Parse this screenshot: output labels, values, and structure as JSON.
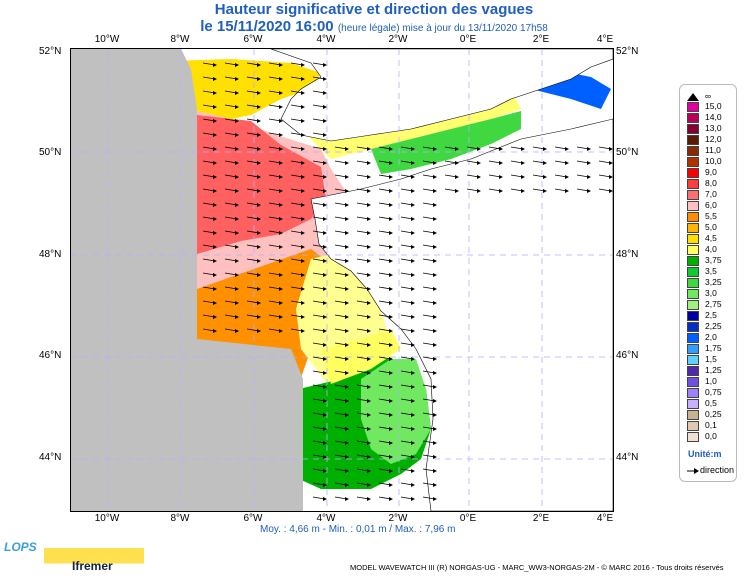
{
  "header": {
    "title": "Hauteur significative et direction des vagues",
    "date_label": "le 15/11/2020 16:00",
    "update_note": "(heure légale) mise à jour du 13/11/2020 17h58"
  },
  "map": {
    "lon_labels": [
      "10°W",
      "8°W",
      "6°W",
      "4°W",
      "2°W",
      "0°E",
      "2°E",
      "4°E"
    ],
    "lat_labels": [
      "52°N",
      "50°N",
      "48°N",
      "46°N",
      "44°N"
    ],
    "land_color": "#c0c0c0",
    "sea_background_color": "#ffffff"
  },
  "legend": {
    "infinity_label": "∞",
    "levels": [
      "15,0",
      "14,0",
      "13,0",
      "12,0",
      "11,0",
      "10,0",
      "9,0",
      "8,0",
      "7,0",
      "6,0",
      "5,5",
      "5,0",
      "4,5",
      "4,0",
      "3,75",
      "3,5",
      "3,25",
      "3,0",
      "2,75",
      "2,5",
      "2,25",
      "2,0",
      "1,75",
      "1,5",
      "1,25",
      "1,0",
      "0,75",
      "0,5",
      "0,25",
      "0,1",
      "0,0"
    ],
    "colors": [
      "#e000a0",
      "#b8005a",
      "#880030",
      "#5c1a00",
      "#8a2a00",
      "#b03200",
      "#ff0000",
      "#ff3c3c",
      "#ff7070",
      "#ffc0c0",
      "#ff8c00",
      "#ffb400",
      "#ffe000",
      "#ffff60",
      "#00b000",
      "#10c830",
      "#40d840",
      "#70e860",
      "#a0f080",
      "#0000a0",
      "#0030c8",
      "#0060ff",
      "#30a0ff",
      "#60d0ff",
      "#5028b0",
      "#7050e0",
      "#a080ff",
      "#c8b0ff",
      "#c8b090",
      "#e0c8b0",
      "#f0e0d0"
    ],
    "unit_label": "Unité:m",
    "direction_label": "direction"
  },
  "stats": {
    "text": "Moy. : 4,66 m  -  Min. : 0,01 m / Max. : 7,96 m"
  },
  "footer": {
    "text": "MODEL WAVEWATCH III (R) NORGAS-UG - MARC_WW3-NORGAS-2M - © MARC 2016 - Tous droits réservés",
    "logo_lops": "LOPS",
    "logo_ifremer": "Ifremer"
  }
}
